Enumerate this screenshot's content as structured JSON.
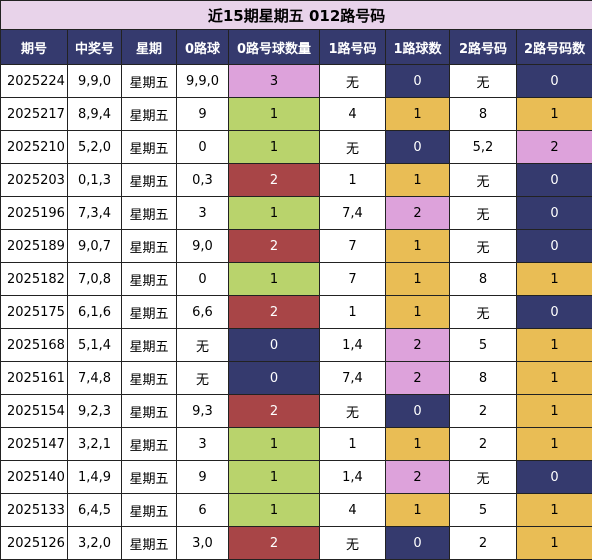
{
  "title": "近15期星期五 012路号码",
  "headers": [
    "期号",
    "中奖号",
    "星期",
    "0路球",
    "0路号球数量",
    "1路号码",
    "1路球数",
    "2路号码",
    "2路号码数"
  ],
  "colors": {
    "header_bg": "#353a6e",
    "title_bg": "#e8d3ea",
    "count_0": "#353a6e",
    "count_1_col4": "#b9d36c",
    "count_2_col4": "#a84547",
    "count_3": "#dda2db",
    "count_1": "#e9bd55",
    "count_2": "#dda2db"
  },
  "rows": [
    {
      "period": "2025224",
      "number": "9,9,0",
      "weekday": "星期五",
      "r0": "9,9,0",
      "r0n": "3",
      "r1": "无",
      "r1n": "0",
      "r2": "无",
      "r2n": "0"
    },
    {
      "period": "2025217",
      "number": "8,9,4",
      "weekday": "星期五",
      "r0": "9",
      "r0n": "1",
      "r1": "4",
      "r1n": "1",
      "r2": "8",
      "r2n": "1"
    },
    {
      "period": "2025210",
      "number": "5,2,0",
      "weekday": "星期五",
      "r0": "0",
      "r0n": "1",
      "r1": "无",
      "r1n": "0",
      "r2": "5,2",
      "r2n": "2"
    },
    {
      "period": "2025203",
      "number": "0,1,3",
      "weekday": "星期五",
      "r0": "0,3",
      "r0n": "2",
      "r1": "1",
      "r1n": "1",
      "r2": "无",
      "r2n": "0"
    },
    {
      "period": "2025196",
      "number": "7,3,4",
      "weekday": "星期五",
      "r0": "3",
      "r0n": "1",
      "r1": "7,4",
      "r1n": "2",
      "r2": "无",
      "r2n": "0"
    },
    {
      "period": "2025189",
      "number": "9,0,7",
      "weekday": "星期五",
      "r0": "9,0",
      "r0n": "2",
      "r1": "7",
      "r1n": "1",
      "r2": "无",
      "r2n": "0"
    },
    {
      "period": "2025182",
      "number": "7,0,8",
      "weekday": "星期五",
      "r0": "0",
      "r0n": "1",
      "r1": "7",
      "r1n": "1",
      "r2": "8",
      "r2n": "1"
    },
    {
      "period": "2025175",
      "number": "6,1,6",
      "weekday": "星期五",
      "r0": "6,6",
      "r0n": "2",
      "r1": "1",
      "r1n": "1",
      "r2": "无",
      "r2n": "0"
    },
    {
      "period": "2025168",
      "number": "5,1,4",
      "weekday": "星期五",
      "r0": "无",
      "r0n": "0",
      "r1": "1,4",
      "r1n": "2",
      "r2": "5",
      "r2n": "1"
    },
    {
      "period": "2025161",
      "number": "7,4,8",
      "weekday": "星期五",
      "r0": "无",
      "r0n": "0",
      "r1": "7,4",
      "r1n": "2",
      "r2": "8",
      "r2n": "1"
    },
    {
      "period": "2025154",
      "number": "9,2,3",
      "weekday": "星期五",
      "r0": "9,3",
      "r0n": "2",
      "r1": "无",
      "r1n": "0",
      "r2": "2",
      "r2n": "1"
    },
    {
      "period": "2025147",
      "number": "3,2,1",
      "weekday": "星期五",
      "r0": "3",
      "r0n": "1",
      "r1": "1",
      "r1n": "1",
      "r2": "2",
      "r2n": "1"
    },
    {
      "period": "2025140",
      "number": "1,4,9",
      "weekday": "星期五",
      "r0": "9",
      "r0n": "1",
      "r1": "1,4",
      "r1n": "2",
      "r2": "无",
      "r2n": "0"
    },
    {
      "period": "2025133",
      "number": "6,4,5",
      "weekday": "星期五",
      "r0": "6",
      "r0n": "1",
      "r1": "4",
      "r1n": "1",
      "r2": "5",
      "r2n": "1"
    },
    {
      "period": "2025126",
      "number": "3,2,0",
      "weekday": "星期五",
      "r0": "3,0",
      "r0n": "2",
      "r1": "无",
      "r1n": "0",
      "r2": "2",
      "r2n": "1"
    }
  ]
}
